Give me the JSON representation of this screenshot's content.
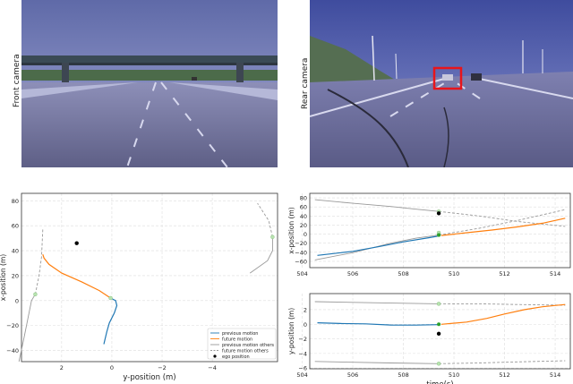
{
  "cameras": {
    "front_label": "Front camera",
    "rear_label": "Rear camera"
  },
  "colors": {
    "previous_motion": "#1f77b4",
    "future_motion": "#ff7f0e",
    "others": "#999999",
    "ego": "#000000",
    "current_point": "#2ca02c",
    "highlight_box": "#e8151b"
  },
  "chart_data": [
    {
      "type": "line",
      "id": "trajectory",
      "xlabel": "y-position (m)",
      "ylabel": "x-position (m)",
      "x_inverted": true,
      "xlim": [
        3.6,
        -6.6
      ],
      "ylim": [
        -49,
        86
      ],
      "xticks": [
        2,
        0,
        -2,
        -4
      ],
      "yticks": [
        -40,
        -20,
        0,
        20,
        40,
        60,
        80
      ],
      "grid": true,
      "legend_position": "bottom-right",
      "legend": [
        {
          "label": "previous motion",
          "key": "prev"
        },
        {
          "label": "future motion",
          "key": "fut"
        },
        {
          "label": "previous motion others",
          "key": "prev_o"
        },
        {
          "label": "future motion others",
          "key": "fut_o"
        },
        {
          "label": "ego position",
          "key": "ego"
        }
      ],
      "series": {
        "prev": [
          [
            0.32,
            -35
          ],
          [
            0.2,
            -25
          ],
          [
            0.1,
            -18
          ],
          [
            -0.1,
            -10
          ],
          [
            -0.2,
            -4
          ],
          [
            -0.15,
            0
          ],
          [
            0.05,
            2
          ]
        ],
        "fut": [
          [
            0.05,
            2
          ],
          [
            0.5,
            8
          ],
          [
            1.2,
            15
          ],
          [
            2.0,
            22
          ],
          [
            2.5,
            29
          ],
          [
            2.7,
            34
          ],
          [
            2.75,
            37
          ]
        ],
        "prev_o": [
          [
            [
              3.7,
              -49
            ],
            [
              3.5,
              -30
            ],
            [
              3.35,
              -15
            ],
            [
              3.2,
              0
            ],
            [
              3.05,
              5
            ]
          ],
          [
            [
              -5.5,
              22
            ],
            [
              -6.2,
              32
            ],
            [
              -6.4,
              40
            ],
            [
              -6.4,
              51
            ]
          ]
        ],
        "fut_o": [
          [
            [
              3.05,
              5
            ],
            [
              2.9,
              20
            ],
            [
              2.8,
              35
            ],
            [
              2.75,
              57
            ]
          ],
          [
            [
              -6.4,
              51
            ],
            [
              -6.25,
              64
            ],
            [
              -5.8,
              78
            ]
          ]
        ],
        "markers": [
          [
            0.05,
            2
          ],
          [
            3.05,
            5
          ],
          [
            -6.4,
            51
          ]
        ],
        "ego": [
          1.4,
          46
        ]
      }
    },
    {
      "type": "line",
      "id": "x_time",
      "xlabel": "",
      "ylabel": "x-position (m)",
      "xlim": [
        504.3,
        514.6
      ],
      "ylim": [
        -74,
        90
      ],
      "xticks": [
        504,
        506,
        508,
        510,
        512,
        514
      ],
      "yticks": [
        -60,
        -40,
        -20,
        0,
        20,
        40,
        60,
        80
      ],
      "grid": true,
      "series": {
        "prev": [
          [
            504.6,
            -47
          ],
          [
            506,
            -38
          ],
          [
            507,
            -28
          ],
          [
            508,
            -17
          ],
          [
            509,
            -8
          ],
          [
            509.4,
            -4
          ]
        ],
        "fut": [
          [
            509.5,
            -3
          ],
          [
            510.5,
            3
          ],
          [
            511.5,
            9
          ],
          [
            512.5,
            16
          ],
          [
            513.5,
            24
          ],
          [
            514.4,
            35
          ]
        ],
        "prev_o": [
          [
            [
              504.5,
              -57
            ],
            [
              506,
              -41
            ],
            [
              507.5,
              -20
            ],
            [
              508.5,
              -9
            ],
            [
              509.4,
              -2
            ]
          ],
          [
            [
              504.5,
              76
            ],
            [
              506,
              68
            ],
            [
              507.5,
              61
            ],
            [
              508.5,
              55
            ],
            [
              509.4,
              50
            ]
          ]
        ],
        "fut_o": [
          [
            [
              509.4,
              -2
            ],
            [
              511,
              13
            ],
            [
              512.5,
              30
            ],
            [
              514.4,
              54
            ]
          ],
          [
            [
              509.4,
              50
            ],
            [
              511,
              40
            ],
            [
              512.5,
              28
            ],
            [
              514.4,
              17
            ]
          ]
        ],
        "markers": [
          [
            509.4,
            -2
          ],
          [
            509.4,
            50
          ],
          [
            509.4,
            3
          ]
        ],
        "current": [
          509.4,
          -2
        ],
        "ego": [
          509.4,
          46
        ]
      }
    },
    {
      "type": "line",
      "id": "y_time",
      "xlabel": "time(s)",
      "ylabel": "y-position (m)",
      "xlim": [
        504.3,
        514.6
      ],
      "ylim": [
        -6.1,
        4.2
      ],
      "xticks": [
        504,
        506,
        508,
        510,
        512,
        514
      ],
      "yticks": [
        -6,
        -4,
        -2,
        0,
        2
      ],
      "grid": true,
      "series": {
        "prev": [
          [
            504.6,
            0.2
          ],
          [
            505.5,
            0.1
          ],
          [
            506.5,
            0.05
          ],
          [
            507.5,
            -0.1
          ],
          [
            508.5,
            -0.12
          ],
          [
            509.4,
            -0.05
          ]
        ],
        "fut": [
          [
            509.5,
            0
          ],
          [
            510.5,
            0.3
          ],
          [
            511.3,
            0.8
          ],
          [
            512,
            1.4
          ],
          [
            512.8,
            2.0
          ],
          [
            513.5,
            2.4
          ],
          [
            514.4,
            2.7
          ]
        ],
        "prev_o": [
          [
            [
              504.5,
              3.1
            ],
            [
              506,
              3.0
            ],
            [
              507.5,
              2.9
            ],
            [
              509.4,
              2.8
            ]
          ],
          [
            [
              504.5,
              -5.1
            ],
            [
              506,
              -5.2
            ],
            [
              507.5,
              -5.3
            ],
            [
              509.4,
              -5.4
            ]
          ]
        ],
        "fut_o": [
          [
            [
              509.4,
              2.8
            ],
            [
              511,
              2.8
            ],
            [
              512.5,
              2.7
            ],
            [
              514.4,
              2.6
            ]
          ],
          [
            [
              509.4,
              -5.4
            ],
            [
              511,
              -5.3
            ],
            [
              512.5,
              -5.15
            ],
            [
              514.4,
              -5.0
            ]
          ]
        ],
        "markers": [
          [
            509.4,
            2.8
          ],
          [
            509.4,
            -5.4
          ]
        ],
        "current": [
          509.4,
          0
        ],
        "ego": [
          509.4,
          -1.3
        ]
      }
    }
  ],
  "texts": {
    "t1_yticks": [
      "80",
      "60",
      "40",
      "20",
      "0",
      "−20",
      "−40"
    ],
    "t1_xticks": [
      "2",
      "0",
      "−2",
      "−4"
    ],
    "t2_yticks": [
      "80",
      "60",
      "40",
      "20",
      "0",
      "−20",
      "−40",
      "−60"
    ],
    "t23_xticks": [
      "504",
      "506",
      "508",
      "510",
      "512",
      "514"
    ],
    "t3_yticks": [
      "2",
      "0",
      "−2",
      "−4",
      "−6"
    ]
  }
}
